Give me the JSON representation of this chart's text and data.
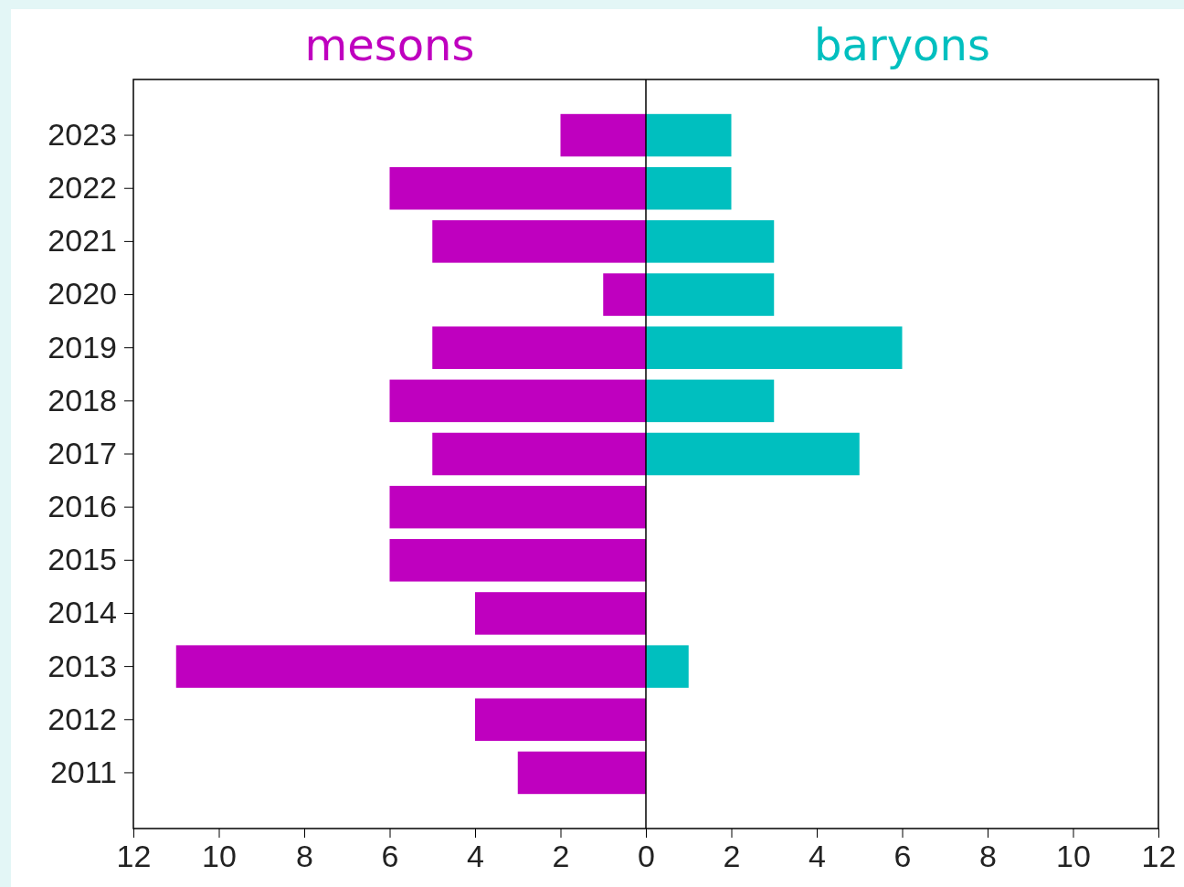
{
  "chart_data": {
    "type": "bar",
    "orientation": "horizontal",
    "categories": [
      "2023",
      "2022",
      "2021",
      "2020",
      "2019",
      "2018",
      "2017",
      "2016",
      "2015",
      "2014",
      "2013",
      "2012",
      "2011"
    ],
    "series": [
      {
        "name": "mesons",
        "color": "#bf00bf",
        "values": [
          -2,
          -6,
          -5,
          -1,
          -5,
          -6,
          -5,
          -6,
          -6,
          -4,
          -11,
          -4,
          -3
        ]
      },
      {
        "name": "baryons",
        "color": "#00bfbf",
        "values": [
          2,
          2,
          3,
          3,
          6,
          3,
          5,
          0,
          0,
          0,
          1,
          0,
          0
        ]
      }
    ],
    "xlim": [
      -12,
      12
    ],
    "xticks": [
      {
        "value": -12,
        "label": "12"
      },
      {
        "value": -10,
        "label": "10"
      },
      {
        "value": -8,
        "label": "8"
      },
      {
        "value": -6,
        "label": "6"
      },
      {
        "value": -4,
        "label": "4"
      },
      {
        "value": -2,
        "label": "2"
      },
      0,
      2,
      4,
      6,
      8,
      10,
      12
    ],
    "ref_lines": [
      {
        "axis": "x",
        "value": 0,
        "color": "#000000"
      }
    ],
    "stacked": true,
    "grid": false
  }
}
